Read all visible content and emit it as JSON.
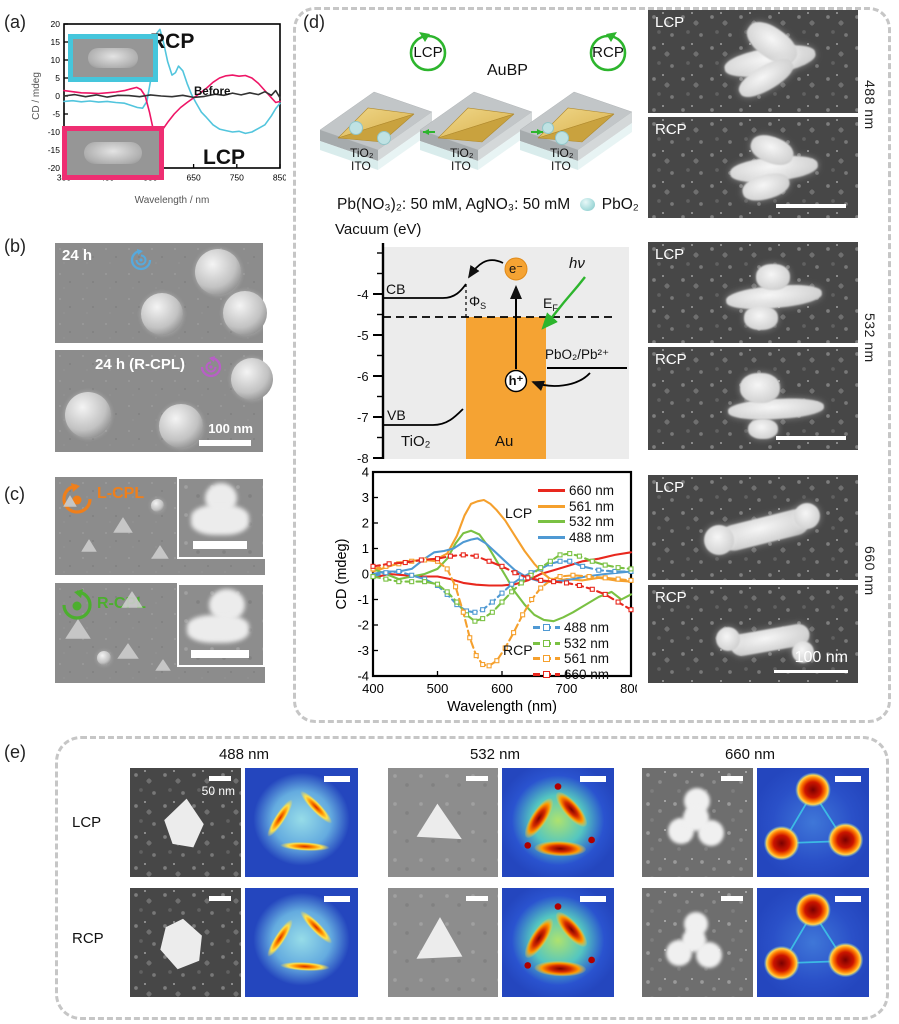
{
  "panel_a": {
    "label": "(a)"
  },
  "panel_b": {
    "label": "(b)",
    "img1_caption": "24 h",
    "img2_caption": "24 h (R-CPL)",
    "scale_bar": "100 nm"
  },
  "panel_c": {
    "label": "(c)",
    "top_caption": "L-CPL",
    "bottom_caption": "R-CPL"
  },
  "panel_d": {
    "label": "(d)",
    "lcp_circle": "LCP",
    "rcp_circle": "RCP",
    "aubp_label": "AuBP",
    "slabs": [
      {
        "layer1": "TiO₂",
        "layer2": "ITO"
      },
      {
        "layer1": "TiO₂",
        "layer2": "ITO"
      },
      {
        "layer1": "TiO₂",
        "layer2": "ITO"
      }
    ],
    "solution_text": "Pb(NO₃)₂: 50 mM, AgNO₃: 50 mM",
    "pbo2_label": "PbO₂",
    "energy": {
      "axis_title": "Vacuum (eV)",
      "ticks": [
        "-4",
        "-5",
        "-6",
        "-7",
        "-8"
      ],
      "cb": "CB",
      "vb": "VB",
      "phi": "Φ",
      "phi_sub": "S",
      "ef": "E",
      "ef_sub": "F",
      "electron": "e⁻",
      "hole": "h⁺",
      "hv": "hν",
      "redox": "PbO₂/Pb²⁺",
      "tio2": "TiO₂",
      "au": "Au"
    },
    "sem": {
      "lcp": "LCP",
      "rcp": "RCP",
      "wavelengths": [
        "488 nm",
        "532 nm",
        "660 nm"
      ],
      "scale_bar": "100 nm"
    }
  },
  "panel_e": {
    "label": "(e)",
    "columns": [
      "488 nm",
      "532 nm",
      "660 nm"
    ],
    "rows": [
      "LCP",
      "RCP"
    ],
    "scale_bar": "50 nm"
  },
  "chart_data": [
    {
      "id": "cd-spectrum-a",
      "type": "line",
      "title": "",
      "xlabel": "Wavelength / nm",
      "ylabel": "CD / mdeg",
      "xlim": [
        350,
        850
      ],
      "ylim": [
        -20,
        20
      ],
      "xticks": [
        350,
        450,
        550,
        650,
        750,
        850
      ],
      "yticks": [
        -20,
        -15,
        -10,
        -5,
        0,
        5,
        10,
        15,
        20
      ],
      "annotations": [
        "RCP",
        "LCP",
        "Before"
      ],
      "series": [
        {
          "name": "RCP",
          "color": "#52c5dd",
          "x": [
            350,
            370,
            390,
            410,
            430,
            450,
            470,
            490,
            505,
            520,
            532,
            542,
            550,
            558,
            565,
            572,
            580,
            590,
            600,
            608,
            615,
            625,
            635,
            645,
            655,
            668,
            680,
            695,
            710,
            725,
            740,
            755,
            770,
            785,
            800,
            815,
            830,
            840,
            850
          ],
          "y": [
            -1.5,
            -1.3,
            -1.6,
            -1.4,
            -1.7,
            -1.5,
            -1.8,
            -2.0,
            -2.6,
            -3.2,
            -3.4,
            -1.5,
            4.0,
            12.0,
            17.5,
            18.5,
            15.0,
            9.5,
            5.8,
            6.5,
            8.3,
            7.0,
            3.5,
            0.5,
            -1.8,
            -4.5,
            -6.0,
            -8.0,
            -9.2,
            -9.6,
            -10.0,
            -9.8,
            -10.4,
            -10.0,
            -9.0,
            -8.0,
            -5.5,
            -3.5,
            -2.0
          ]
        },
        {
          "name": "LCP",
          "color": "#ee1566",
          "x": [
            350,
            370,
            390,
            410,
            430,
            450,
            470,
            490,
            505,
            518,
            528,
            538,
            548,
            556,
            563,
            570,
            580,
            592,
            605,
            620,
            635,
            650,
            665,
            680,
            695,
            710,
            725,
            740,
            755,
            770,
            785,
            800,
            815,
            830,
            840,
            850
          ],
          "y": [
            1.5,
            1.2,
            0.9,
            0.8,
            0.7,
            0.9,
            1.1,
            1.5,
            2.0,
            2.4,
            1.8,
            0.0,
            -4.5,
            -9.0,
            -10.5,
            -10.2,
            -9.0,
            -7.0,
            -5.0,
            -3.2,
            -1.8,
            -0.5,
            0.8,
            2.2,
            3.8,
            5.0,
            5.6,
            5.8,
            5.5,
            5.7,
            5.0,
            3.5,
            1.5,
            -0.5,
            -1.8,
            -1.5
          ]
        },
        {
          "name": "Before",
          "color": "#333333",
          "x": [
            350,
            375,
            400,
            425,
            450,
            475,
            500,
            525,
            550,
            575,
            600,
            625,
            650,
            675,
            700,
            720,
            740,
            760,
            780,
            800,
            815,
            830,
            840,
            850
          ],
          "y": [
            0.0,
            0.4,
            -0.2,
            0.3,
            -0.3,
            0.2,
            0.1,
            -0.2,
            0.3,
            0.0,
            -0.2,
            0.2,
            -0.4,
            -0.1,
            0.5,
            0.2,
            0.8,
            0.3,
            0.9,
            0.4,
            1.2,
            0.2,
            1.5,
            -0.5
          ]
        }
      ]
    },
    {
      "id": "cd-spectrum-d",
      "type": "line",
      "title": "",
      "xlabel": "Wavelength (nm)",
      "ylabel": "CD (mdeg)",
      "xlim": [
        400,
        800
      ],
      "ylim": [
        -4,
        4
      ],
      "xticks": [
        400,
        500,
        600,
        700,
        800
      ],
      "yticks": [
        -4,
        -3,
        -2,
        -1,
        0,
        1,
        2,
        3,
        4
      ],
      "legend_lcp": {
        "title": "LCP",
        "entries": [
          {
            "label": "660 nm",
            "color": "#e8281e",
            "dashed": false
          },
          {
            "label": "561 nm",
            "color": "#f5a02d",
            "dashed": false
          },
          {
            "label": "532 nm",
            "color": "#7ac143",
            "dashed": false
          },
          {
            "label": "488 nm",
            "color": "#4f99d3",
            "dashed": false
          }
        ]
      },
      "legend_rcp": {
        "title": "RCP",
        "entries": [
          {
            "label": "488 nm",
            "color": "#4f99d3",
            "dashed": true
          },
          {
            "label": "532 nm",
            "color": "#7ac143",
            "dashed": true
          },
          {
            "label": "561 nm",
            "color": "#f5a02d",
            "dashed": true
          },
          {
            "label": "660 nm",
            "color": "#e8281e",
            "dashed": true
          }
        ]
      },
      "series": [
        {
          "name": "LCP 660 nm",
          "color": "#e8281e",
          "x": [
            400,
            425,
            450,
            475,
            500,
            520,
            540,
            560,
            580,
            600,
            620,
            640,
            660,
            680,
            700,
            725,
            750,
            775,
            800
          ],
          "y": [
            -0.15,
            0.0,
            -0.05,
            -0.1,
            -0.1,
            -0.2,
            -0.35,
            -0.42,
            -0.45,
            -0.45,
            -0.4,
            -0.25,
            0.0,
            0.15,
            0.3,
            0.5,
            0.6,
            0.75,
            0.85
          ]
        },
        {
          "name": "LCP 561 nm",
          "color": "#f5a02d",
          "x": [
            400,
            425,
            450,
            475,
            500,
            515,
            530,
            542,
            552,
            562,
            572,
            582,
            592,
            605,
            620,
            635,
            650,
            665,
            680,
            700,
            725,
            750,
            775,
            800
          ],
          "y": [
            0.1,
            0.3,
            0.5,
            0.55,
            0.6,
            0.8,
            1.5,
            2.3,
            2.75,
            2.85,
            2.9,
            2.75,
            2.5,
            2.1,
            1.5,
            0.9,
            0.4,
            0.0,
            -0.3,
            -0.2,
            -0.25,
            -0.15,
            -0.25,
            -0.3
          ]
        },
        {
          "name": "LCP 532 nm",
          "color": "#7ac143",
          "x": [
            400,
            420,
            440,
            460,
            480,
            500,
            515,
            528,
            540,
            552,
            565,
            578,
            592,
            606,
            620,
            635,
            650,
            665,
            680,
            695,
            710,
            730,
            750,
            770,
            785,
            800
          ],
          "y": [
            0.2,
            0.0,
            -0.2,
            -0.1,
            0.0,
            0.2,
            0.6,
            1.2,
            1.6,
            1.7,
            1.55,
            1.1,
            0.5,
            -0.1,
            -0.7,
            -1.2,
            -1.6,
            -1.8,
            -1.85,
            -1.7,
            -1.5,
            -1.2,
            -0.9,
            -0.7,
            -1.0,
            -0.8
          ]
        },
        {
          "name": "LCP 488 nm",
          "color": "#4f99d3",
          "x": [
            400,
            420,
            440,
            460,
            480,
            495,
            510,
            525,
            540,
            552,
            562,
            575,
            590,
            605,
            620,
            640,
            660,
            680,
            700,
            730,
            760,
            800
          ],
          "y": [
            0.0,
            0.1,
            0.1,
            0.2,
            0.6,
            0.85,
            0.9,
            1.0,
            1.25,
            1.35,
            1.4,
            1.2,
            0.85,
            0.5,
            0.15,
            -0.15,
            -0.3,
            -0.3,
            -0.25,
            -0.1,
            0.0,
            0.1
          ]
        },
        {
          "name": "RCP 488 nm",
          "color": "#4f99d3",
          "dashed": true,
          "markers": true,
          "x": [
            400,
            420,
            440,
            460,
            480,
            500,
            515,
            530,
            545,
            558,
            570,
            585,
            600,
            615,
            630,
            645,
            660,
            675,
            690,
            705,
            725,
            750,
            775,
            800
          ],
          "y": [
            -0.1,
            0.05,
            0.1,
            -0.05,
            -0.2,
            -0.45,
            -0.8,
            -1.2,
            -1.45,
            -1.5,
            -1.4,
            -1.1,
            -0.75,
            -0.4,
            -0.15,
            0.05,
            0.2,
            0.4,
            0.5,
            0.5,
            0.3,
            0.15,
            0.1,
            0.1
          ]
        },
        {
          "name": "RCP 532 nm",
          "color": "#7ac143",
          "dashed": true,
          "markers": true,
          "x": [
            400,
            420,
            440,
            460,
            480,
            500,
            515,
            530,
            545,
            558,
            570,
            585,
            600,
            615,
            630,
            645,
            660,
            675,
            690,
            705,
            720,
            740,
            760,
            780,
            800
          ],
          "y": [
            -0.1,
            -0.2,
            -0.3,
            -0.3,
            -0.3,
            -0.4,
            -0.7,
            -1.1,
            -1.6,
            -1.85,
            -1.75,
            -1.5,
            -1.1,
            -0.7,
            -0.35,
            -0.05,
            0.25,
            0.5,
            0.75,
            0.8,
            0.7,
            0.5,
            0.35,
            0.25,
            0.2
          ]
        },
        {
          "name": "RCP 561 nm",
          "color": "#f5a02d",
          "dashed": true,
          "markers": true,
          "x": [
            400,
            420,
            440,
            460,
            480,
            500,
            515,
            528,
            540,
            550,
            560,
            570,
            580,
            592,
            605,
            618,
            632,
            646,
            660,
            675,
            690,
            710,
            735,
            760,
            780,
            800
          ],
          "y": [
            0.2,
            0.3,
            0.4,
            0.5,
            0.55,
            0.5,
            0.2,
            -0.5,
            -1.5,
            -2.5,
            -3.2,
            -3.55,
            -3.6,
            -3.4,
            -2.9,
            -2.3,
            -1.6,
            -1.0,
            -0.55,
            -0.25,
            -0.1,
            -0.05,
            -0.1,
            -0.15,
            -0.2,
            -0.25
          ]
        },
        {
          "name": "RCP 660 nm",
          "color": "#e8281e",
          "dashed": true,
          "markers": true,
          "x": [
            400,
            425,
            450,
            475,
            500,
            520,
            540,
            560,
            580,
            600,
            620,
            640,
            660,
            680,
            700,
            720,
            740,
            760,
            780,
            800
          ],
          "y": [
            0.3,
            0.4,
            0.45,
            0.55,
            0.6,
            0.7,
            0.75,
            0.7,
            0.5,
            0.3,
            0.05,
            -0.15,
            -0.25,
            -0.3,
            -0.35,
            -0.45,
            -0.6,
            -0.8,
            -1.1,
            -1.4
          ]
        }
      ]
    }
  ]
}
